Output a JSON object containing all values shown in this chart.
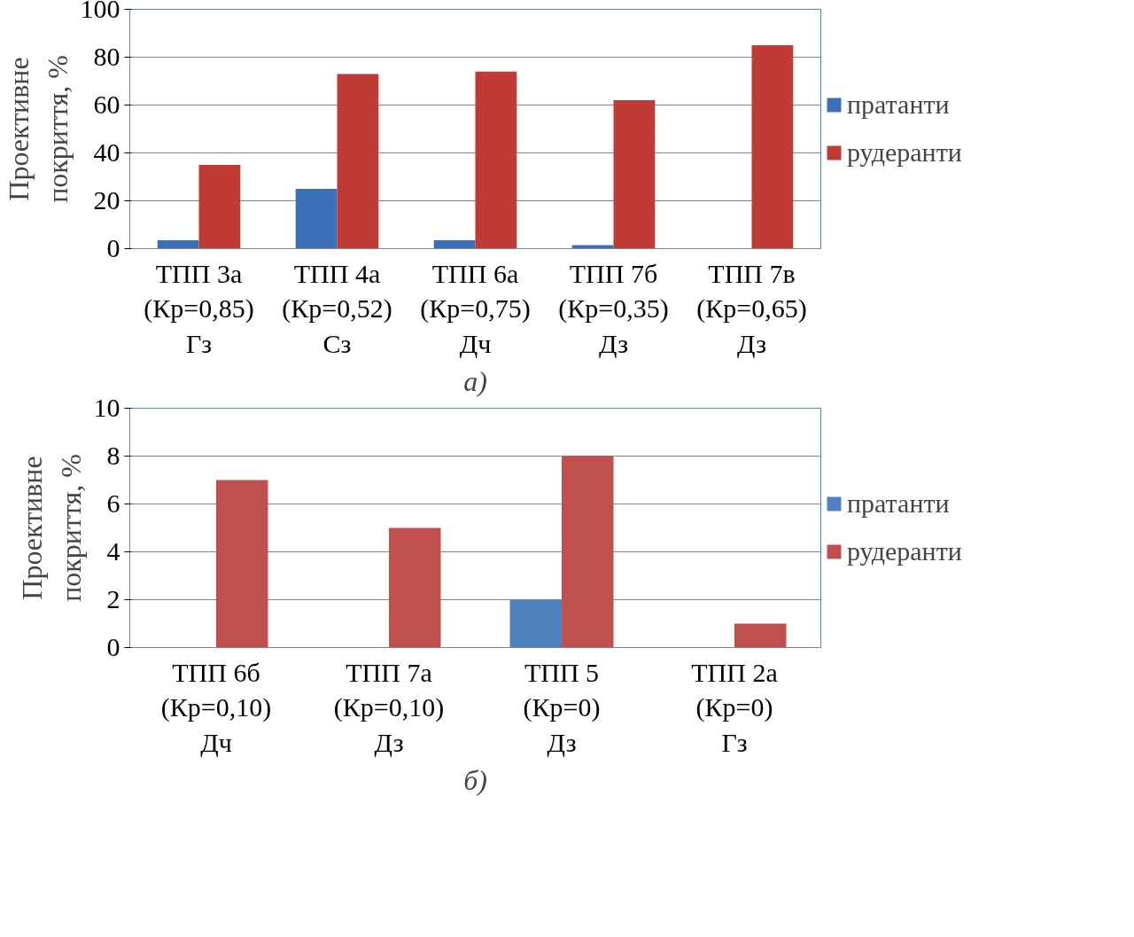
{
  "chart_data": [
    {
      "type": "bar",
      "ylabel": "Проективне\nпокриття, %",
      "categories": [
        "ТПП 3а\n(Кр=0,85)\nГз",
        "ТПП 4а\n(Кр=0,52)\nСз",
        "ТПП 6а\n(Кр=0,75)\nДч",
        "ТПП 7б\n(Кр=0,35)\nДз",
        "ТПП 7в\n(Кр=0,65)\nДз"
      ],
      "series": [
        {
          "name": "пратанти",
          "color": "#3b70b9",
          "values": [
            3.5,
            25,
            3.5,
            1.5,
            0
          ]
        },
        {
          "name": "рудеранти",
          "color": "#c03a36",
          "values": [
            35,
            73,
            74,
            62,
            85
          ]
        }
      ],
      "ylim": [
        0,
        100
      ],
      "yticks": [
        0,
        20,
        40,
        60,
        80,
        100
      ],
      "grid": "y",
      "legend": "right",
      "annotations": [
        "а)"
      ]
    },
    {
      "type": "bar",
      "ylabel": "Проективне\nпокриття, %",
      "categories": [
        "ТПП 6б\n(Кр=0,10)\nДч",
        "ТПП 7а\n(Кр=0,10)\nДз",
        "ТПП 5\n(Кр=0)\nДз",
        "ТПП 2а\n(Кр=0)\nГз"
      ],
      "series": [
        {
          "name": "пратанти",
          "color": "#4f81bd",
          "values": [
            0,
            0,
            2,
            0
          ]
        },
        {
          "name": "рудеранти",
          "color": "#c0504d",
          "values": [
            7,
            5,
            8,
            1
          ]
        }
      ],
      "ylim": [
        0,
        10
      ],
      "yticks": [
        0,
        2,
        4,
        6,
        8,
        10
      ],
      "grid": "y",
      "legend": "right",
      "annotations": [
        "б)"
      ]
    }
  ]
}
